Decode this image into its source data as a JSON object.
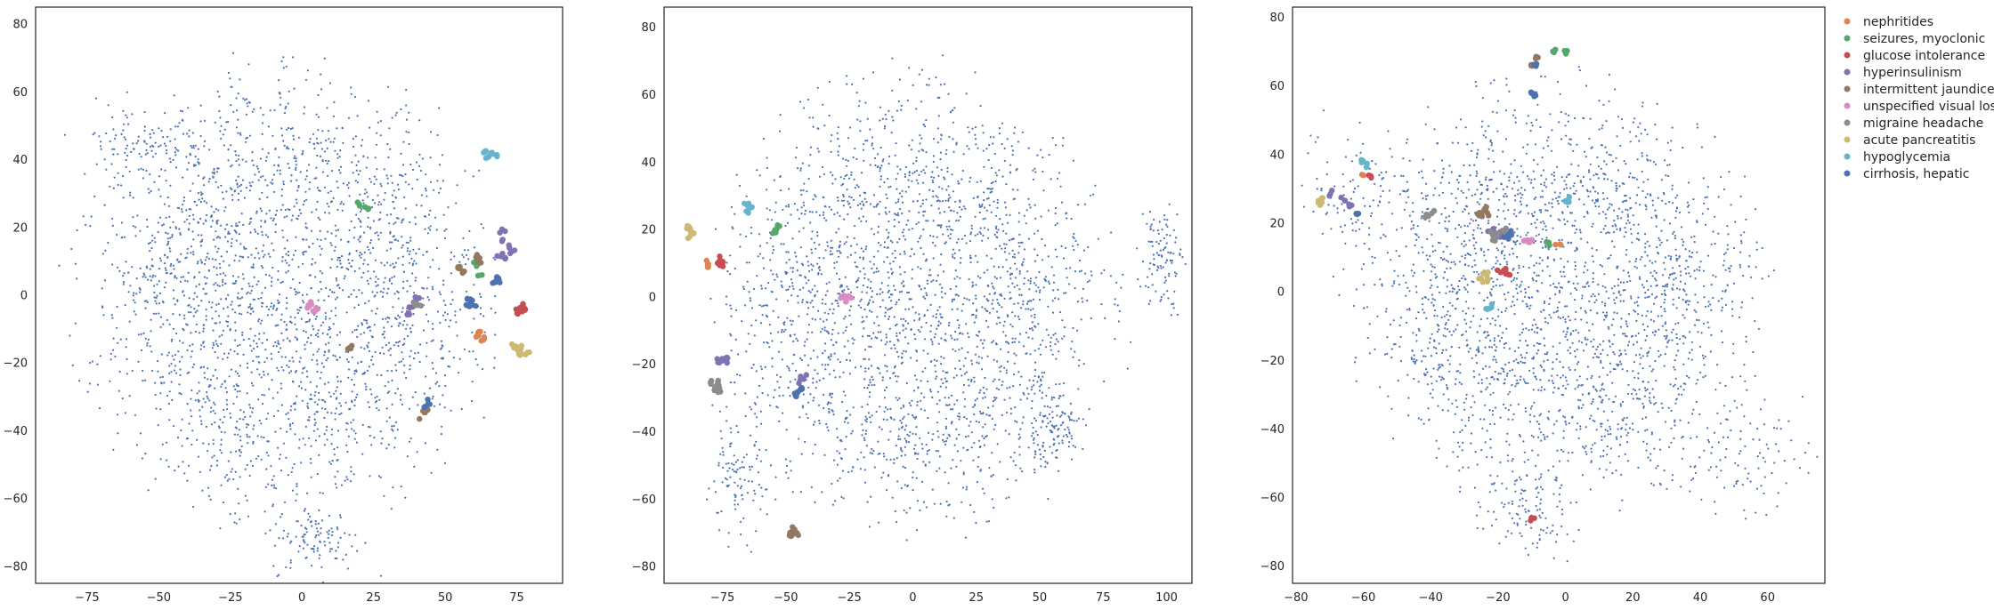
{
  "chart_data": [
    {
      "type": "scatter",
      "title": "",
      "xlabel": "",
      "ylabel": "",
      "xlim": [
        -93,
        91
      ],
      "ylim": [
        -85,
        85
      ],
      "xticks": [
        -75,
        -50,
        -25,
        0,
        25,
        50,
        75
      ],
      "yticks": [
        -80,
        -60,
        -40,
        -20,
        0,
        20,
        40,
        60,
        80
      ],
      "grid": false,
      "background": {
        "color": "#4c72b0",
        "count": 2600,
        "center": [
          -5,
          0
        ],
        "radius": [
          82,
          75
        ],
        "extra_blobs": [
          [
            5,
            -72,
            8,
            5
          ],
          [
            -55,
            45,
            12,
            6
          ],
          [
            -40,
            5,
            14,
            10
          ]
        ]
      },
      "series": [
        {
          "label_index": 0,
          "points": [
            [
              61,
              -12
            ],
            [
              63,
              -13
            ],
            [
              62,
              -11
            ]
          ]
        },
        {
          "label_index": 1,
          "points": [
            [
              20,
              27
            ],
            [
              23,
              26
            ],
            [
              61,
              9
            ],
            [
              62,
              6
            ]
          ]
        },
        {
          "label_index": 2,
          "points": [
            [
              76,
              -4
            ],
            [
              77,
              -3
            ],
            [
              75,
              -5
            ],
            [
              78,
              -4
            ],
            [
              76,
              -5
            ]
          ]
        },
        {
          "label_index": 3,
          "points": [
            [
              70,
              16
            ],
            [
              72,
              14
            ],
            [
              69,
              12
            ],
            [
              71,
              11
            ],
            [
              73,
              13
            ],
            [
              70,
              19
            ],
            [
              38,
              -4
            ],
            [
              37,
              -5
            ],
            [
              40,
              -1
            ]
          ]
        },
        {
          "label_index": 4,
          "points": [
            [
              55,
              8
            ],
            [
              56,
              7
            ],
            [
              61,
              11
            ],
            [
              62,
              10
            ],
            [
              16,
              -16
            ],
            [
              17,
              -15
            ],
            [
              42,
              -35
            ],
            [
              43,
              -34
            ]
          ]
        },
        {
          "label_index": 5,
          "points": [
            [
              2,
              -3
            ],
            [
              4,
              -5
            ],
            [
              5,
              -4
            ],
            [
              3,
              -3
            ]
          ]
        },
        {
          "label_index": 6,
          "points": [
            [
              40,
              -2
            ],
            [
              41,
              -3
            ]
          ]
        },
        {
          "label_index": 7,
          "points": [
            [
              75,
              -16
            ],
            [
              77,
              -15
            ],
            [
              76,
              -17
            ],
            [
              74,
              -15
            ],
            [
              78,
              -17
            ]
          ]
        },
        {
          "label_index": 8,
          "points": [
            [
              64,
              42
            ],
            [
              66,
              42
            ],
            [
              68,
              41
            ],
            [
              65,
              41
            ]
          ]
        },
        {
          "label_index": 9,
          "points": [
            [
              67,
              4
            ],
            [
              68,
              5
            ],
            [
              69,
              4
            ],
            [
              58,
              -1
            ],
            [
              59,
              -2
            ],
            [
              60,
              -3
            ],
            [
              58,
              -3
            ],
            [
              43,
              -33
            ],
            [
              44,
              -32
            ]
          ]
        }
      ]
    },
    {
      "type": "scatter",
      "title": "",
      "xlabel": "",
      "ylabel": "",
      "xlim": [
        -98,
        110
      ],
      "ylim": [
        -85,
        86
      ],
      "xticks": [
        -75,
        -50,
        -25,
        0,
        25,
        50,
        75,
        100
      ],
      "yticks": [
        -80,
        -60,
        -40,
        -20,
        0,
        20,
        40,
        60,
        80
      ],
      "grid": false,
      "background": {
        "color": "#4c72b0",
        "count": 2600,
        "center": [
          0,
          -2
        ],
        "radius": [
          88,
          76
        ],
        "extra_blobs": [
          [
            98,
            12,
            4,
            8
          ],
          [
            55,
            -40,
            6,
            5
          ],
          [
            -70,
            -55,
            6,
            8
          ]
        ]
      },
      "series": [
        {
          "label_index": 0,
          "points": [
            [
              -80,
              9
            ],
            [
              -81,
              10
            ]
          ]
        },
        {
          "label_index": 1,
          "points": [
            [
              -54,
              20
            ],
            [
              -53,
              21
            ],
            [
              -54,
              19
            ]
          ]
        },
        {
          "label_index": 2,
          "points": [
            [
              -76,
              9
            ],
            [
              -75,
              10
            ],
            [
              -76,
              11
            ]
          ]
        },
        {
          "label_index": 3,
          "points": [
            [
              -75,
              -18
            ],
            [
              -74,
              -19
            ],
            [
              -76,
              -19
            ],
            [
              -73,
              -18
            ],
            [
              -44,
              -25
            ],
            [
              -43,
              -24
            ]
          ]
        },
        {
          "label_index": 4,
          "points": [
            [
              -48,
              -70
            ],
            [
              -47,
              -69
            ],
            [
              -46,
              -70
            ],
            [
              -48,
              -71
            ]
          ]
        },
        {
          "label_index": 5,
          "points": [
            [
              -26,
              -1
            ],
            [
              -25,
              0
            ],
            [
              -27,
              0
            ]
          ]
        },
        {
          "label_index": 6,
          "points": [
            [
              -77,
              -25
            ],
            [
              -78,
              -27
            ],
            [
              -79,
              -25
            ],
            [
              -76,
              -27
            ],
            [
              -77,
              -28
            ]
          ]
        },
        {
          "label_index": 7,
          "points": [
            [
              -88,
              21
            ],
            [
              -87,
              19
            ],
            [
              -88,
              18
            ],
            [
              -89,
              20
            ]
          ]
        },
        {
          "label_index": 8,
          "points": [
            [
              -65,
              27
            ],
            [
              -64,
              26
            ],
            [
              -65,
              25
            ]
          ]
        },
        {
          "label_index": 9,
          "points": [
            [
              -45,
              -28
            ],
            [
              -46,
              -29
            ],
            [
              -44,
              -27
            ]
          ]
        }
      ]
    },
    {
      "type": "scatter",
      "title": "",
      "xlabel": "",
      "ylabel": "",
      "xlim": [
        -81,
        77
      ],
      "ylim": [
        -85,
        83
      ],
      "xticks": [
        -80,
        -60,
        -40,
        -20,
        0,
        20,
        40,
        60
      ],
      "yticks": [
        -80,
        -60,
        -40,
        -20,
        0,
        20,
        40,
        60,
        80
      ],
      "grid": false,
      "background": {
        "color": "#4c72b0",
        "count": 2600,
        "center": [
          -2,
          0
        ],
        "radius": [
          68,
          68
        ],
        "extra_blobs": [
          [
            -12,
            -65,
            8,
            6
          ],
          [
            50,
            -48,
            10,
            8
          ],
          [
            -60,
            30,
            10,
            10
          ]
        ]
      },
      "series": [
        {
          "label_index": 0,
          "points": [
            [
              -60,
              34
            ],
            [
              -2,
              14
            ]
          ]
        },
        {
          "label_index": 1,
          "points": [
            [
              -5,
              14
            ],
            [
              0,
              70
            ],
            [
              -3,
              70
            ]
          ]
        },
        {
          "label_index": 2,
          "points": [
            [
              -10,
              -66
            ],
            [
              -18,
              6
            ],
            [
              -17,
              5
            ],
            [
              -19,
              6
            ],
            [
              -58,
              34
            ]
          ]
        },
        {
          "label_index": 3,
          "points": [
            [
              -70,
              29
            ],
            [
              -66,
              27
            ],
            [
              -64,
              25
            ],
            [
              -21,
              17
            ],
            [
              -20,
              16
            ],
            [
              -22,
              18
            ],
            [
              -19,
              17
            ]
          ]
        },
        {
          "label_index": 4,
          "points": [
            [
              -25,
              22
            ],
            [
              -24,
              24
            ],
            [
              -23,
              23
            ],
            [
              -25,
              23
            ],
            [
              -9,
              68
            ],
            [
              -10,
              66
            ]
          ]
        },
        {
          "label_index": 5,
          "points": [
            [
              -12,
              15
            ],
            [
              -11,
              14
            ],
            [
              -10,
              15
            ]
          ]
        },
        {
          "label_index": 6,
          "points": [
            [
              -20,
              17
            ],
            [
              -18,
              18
            ],
            [
              -21,
              15
            ],
            [
              -22,
              17
            ],
            [
              -39,
              23
            ],
            [
              -41,
              22
            ]
          ]
        },
        {
          "label_index": 7,
          "points": [
            [
              -72,
              27
            ],
            [
              -73,
              26
            ],
            [
              -24,
              3
            ],
            [
              -23,
              4
            ],
            [
              -25,
              4
            ],
            [
              -24,
              5
            ]
          ]
        },
        {
          "label_index": 8,
          "points": [
            [
              -60,
              38
            ],
            [
              -59,
              37
            ],
            [
              1,
              27
            ],
            [
              0,
              26
            ],
            [
              -22,
              -4
            ],
            [
              -23,
              -5
            ]
          ]
        },
        {
          "label_index": 9,
          "points": [
            [
              -62,
              23
            ],
            [
              -9,
              66
            ],
            [
              -9,
              57
            ],
            [
              -10,
              58
            ],
            [
              -17,
              16
            ],
            [
              -16,
              17
            ]
          ]
        }
      ]
    }
  ],
  "legend": {
    "placement": "outside-right",
    "items": [
      {
        "label": "nephritides",
        "color": "#dd8452"
      },
      {
        "label": "seizures, myoclonic",
        "color": "#55a868"
      },
      {
        "label": "glucose intolerance",
        "color": "#c44e52"
      },
      {
        "label": "hyperinsulinism",
        "color": "#8172b3"
      },
      {
        "label": "intermittent jaundice",
        "color": "#937860"
      },
      {
        "label": "unspecified visual loss",
        "color": "#da8bc3"
      },
      {
        "label": "migraine headache",
        "color": "#8c8c8c"
      },
      {
        "label": "acute pancreatitis",
        "color": "#ccb974"
      },
      {
        "label": "hypoglycemia",
        "color": "#64b5cd"
      },
      {
        "label": "cirrhosis, hepatic",
        "color": "#4c72b0"
      }
    ]
  }
}
